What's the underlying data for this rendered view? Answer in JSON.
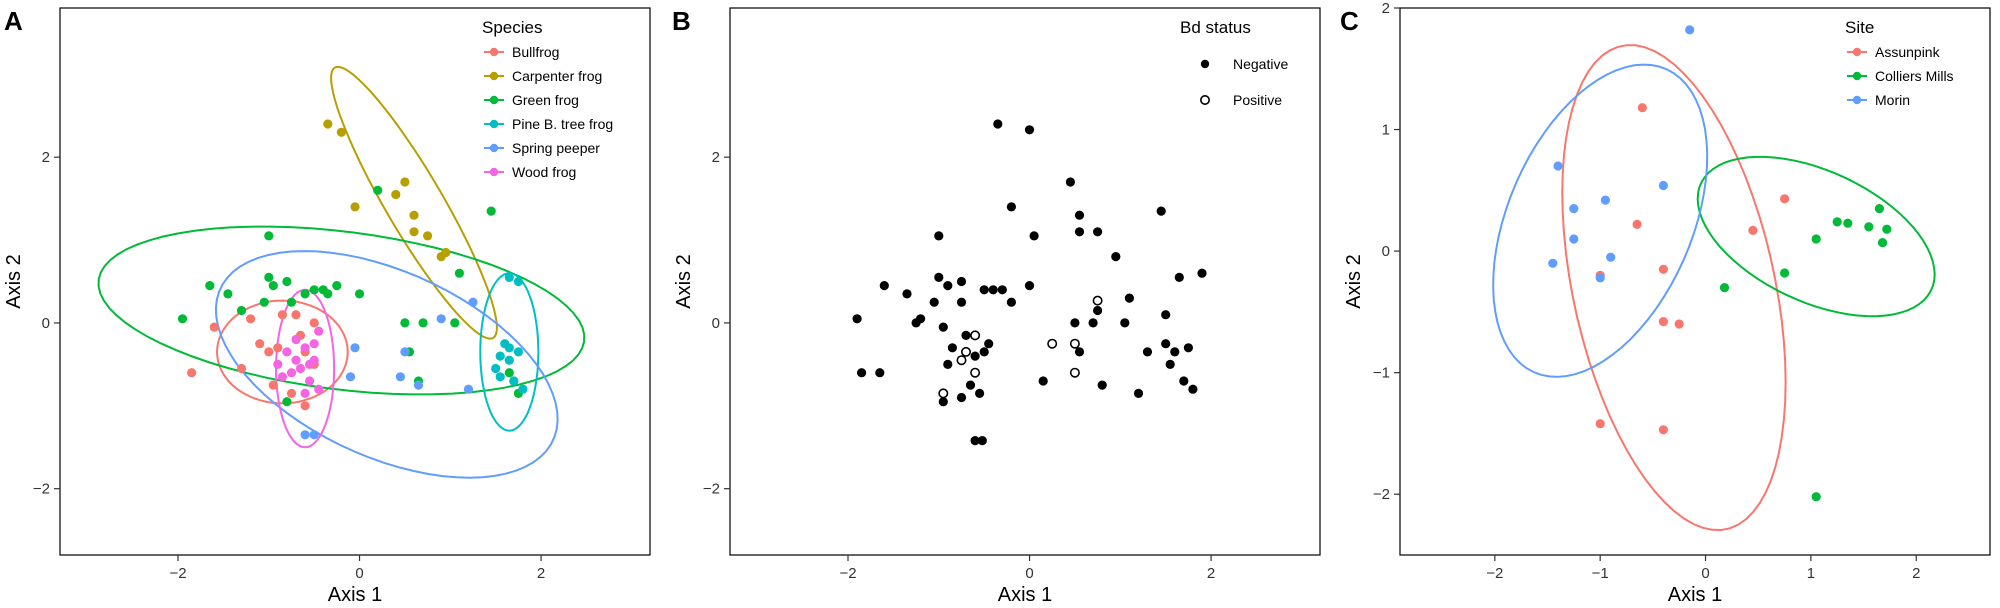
{
  "chart_data": [
    {
      "type": "scatter",
      "panel_label": "A",
      "xlabel": "Axis 1",
      "ylabel": "Axis 2",
      "xlim": [
        -3.3,
        3.2
      ],
      "ylim": [
        -2.8,
        3.8
      ],
      "xticks": [
        -2,
        0,
        2
      ],
      "yticks": [
        -2,
        0,
        2
      ],
      "grid": false,
      "legend": {
        "title": "Species",
        "placement": "top-right"
      },
      "series": [
        {
          "name": "Bullfrog",
          "color": "#F8766D",
          "points": [
            [
              -1.85,
              -0.6
            ],
            [
              -1.6,
              -0.05
            ],
            [
              -1.2,
              0.05
            ],
            [
              -1.1,
              -0.25
            ],
            [
              -1.0,
              -0.35
            ],
            [
              -0.9,
              -0.3
            ],
            [
              -0.85,
              0.1
            ],
            [
              -0.7,
              0.1
            ],
            [
              -0.65,
              -0.15
            ],
            [
              -0.6,
              -0.35
            ],
            [
              -0.5,
              0.0
            ],
            [
              -0.5,
              -0.5
            ],
            [
              -0.95,
              -0.75
            ],
            [
              -0.75,
              -0.85
            ],
            [
              -0.6,
              -1.0
            ],
            [
              -1.3,
              -0.55
            ]
          ],
          "ellipse": {
            "cx": -0.85,
            "cy": -0.35,
            "rx": 0.72,
            "ry": 0.62,
            "angle_deg": 0
          }
        },
        {
          "name": "Carpenter frog",
          "color": "#B79F00",
          "points": [
            [
              -0.35,
              2.4
            ],
            [
              -0.2,
              2.3
            ],
            [
              0.5,
              1.7
            ],
            [
              0.4,
              1.55
            ],
            [
              -0.05,
              1.4
            ],
            [
              0.6,
              1.3
            ],
            [
              0.6,
              1.1
            ],
            [
              0.75,
              1.05
            ],
            [
              0.9,
              0.8
            ],
            [
              0.95,
              0.85
            ]
          ],
          "ellipse": {
            "cx": 0.6,
            "cy": 1.45,
            "rx": 1.85,
            "ry": 0.32,
            "angle_deg": -62
          }
        },
        {
          "name": "Green frog",
          "color": "#00BA38",
          "points": [
            [
              -1.0,
              1.05
            ],
            [
              0.2,
              1.6
            ],
            [
              1.45,
              1.35
            ],
            [
              -1.65,
              0.45
            ],
            [
              -1.45,
              0.35
            ],
            [
              -1.3,
              0.15
            ],
            [
              -1.0,
              0.55
            ],
            [
              -0.95,
              0.45
            ],
            [
              -0.8,
              0.5
            ],
            [
              -0.6,
              0.35
            ],
            [
              -0.5,
              0.4
            ],
            [
              -0.4,
              0.4
            ],
            [
              -0.35,
              0.35
            ],
            [
              -0.25,
              0.45
            ],
            [
              -0.75,
              0.25
            ],
            [
              -1.05,
              0.25
            ],
            [
              -1.95,
              0.05
            ],
            [
              0.0,
              0.35
            ],
            [
              0.5,
              0.0
            ],
            [
              0.7,
              0.0
            ],
            [
              1.05,
              0.0
            ],
            [
              0.55,
              -0.35
            ],
            [
              1.65,
              -0.6
            ],
            [
              1.7,
              -0.7
            ],
            [
              0.65,
              -0.7
            ],
            [
              -0.8,
              -0.95
            ],
            [
              1.75,
              -0.85
            ],
            [
              1.1,
              0.6
            ]
          ],
          "ellipse": {
            "cx": -0.2,
            "cy": 0.15,
            "rx": 2.7,
            "ry": 0.95,
            "angle_deg": -8
          }
        },
        {
          "name": "Pine B. tree frog",
          "color": "#00BFC4",
          "points": [
            [
              1.6,
              -0.25
            ],
            [
              1.65,
              -0.3
            ],
            [
              1.75,
              -0.35
            ],
            [
              1.65,
              -0.45
            ],
            [
              1.5,
              -0.55
            ],
            [
              1.55,
              -0.65
            ],
            [
              1.7,
              -0.7
            ],
            [
              1.8,
              -0.8
            ],
            [
              1.65,
              0.55
            ],
            [
              1.75,
              0.5
            ],
            [
              1.55,
              -0.4
            ]
          ],
          "ellipse": {
            "cx": 1.65,
            "cy": -0.35,
            "rx": 0.32,
            "ry": 0.95,
            "angle_deg": 0
          }
        },
        {
          "name": "Spring peeper",
          "color": "#619CFF",
          "points": [
            [
              -0.05,
              -0.3
            ],
            [
              0.5,
              -0.35
            ],
            [
              -0.1,
              -0.65
            ],
            [
              0.45,
              -0.65
            ],
            [
              0.65,
              -0.75
            ],
            [
              1.2,
              -0.8
            ],
            [
              0.9,
              0.05
            ],
            [
              1.25,
              0.25
            ],
            [
              -0.6,
              -1.35
            ],
            [
              -0.5,
              -1.35
            ]
          ],
          "ellipse": {
            "cx": 0.3,
            "cy": -0.5,
            "rx": 2.05,
            "ry": 1.1,
            "angle_deg": -28
          }
        },
        {
          "name": "Wood frog",
          "color": "#F564E3",
          "points": [
            [
              -0.8,
              -0.35
            ],
            [
              -0.7,
              -0.2
            ],
            [
              -0.6,
              -0.3
            ],
            [
              -0.5,
              -0.25
            ],
            [
              -0.45,
              -0.1
            ],
            [
              -0.55,
              -0.5
            ],
            [
              -0.65,
              -0.55
            ],
            [
              -0.75,
              -0.6
            ],
            [
              -0.55,
              -0.7
            ],
            [
              -0.45,
              -0.8
            ],
            [
              -0.6,
              -0.85
            ],
            [
              -0.7,
              -0.45
            ],
            [
              -0.9,
              -0.5
            ],
            [
              -0.85,
              -0.65
            ],
            [
              -0.5,
              -0.45
            ]
          ],
          "ellipse": {
            "cx": -0.6,
            "cy": -0.55,
            "rx": 0.32,
            "ry": 0.95,
            "angle_deg": 0
          }
        }
      ]
    },
    {
      "type": "scatter",
      "panel_label": "B",
      "xlabel": "Axis 1",
      "ylabel": "Axis 2",
      "xlim": [
        -3.3,
        3.2
      ],
      "ylim": [
        -2.8,
        3.8
      ],
      "xticks": [
        -2,
        0,
        2
      ],
      "yticks": [
        -2,
        0,
        2
      ],
      "grid": false,
      "legend": {
        "title": "Bd status",
        "placement": "top-right"
      },
      "series": [
        {
          "name": "Negative",
          "style": "filled",
          "color": "#000000",
          "points": [
            [
              -0.35,
              2.4
            ],
            [
              -0.0,
              2.33
            ],
            [
              -0.2,
              1.4
            ],
            [
              0.45,
              1.7
            ],
            [
              0.55,
              1.3
            ],
            [
              0.05,
              1.05
            ],
            [
              0.55,
              1.1
            ],
            [
              0.75,
              1.1
            ],
            [
              0.95,
              0.8
            ],
            [
              1.45,
              1.35
            ],
            [
              -1.0,
              1.05
            ],
            [
              -1.6,
              0.45
            ],
            [
              -1.35,
              0.35
            ],
            [
              -1.0,
              0.55
            ],
            [
              -0.9,
              0.45
            ],
            [
              -0.75,
              0.5
            ],
            [
              -0.5,
              0.4
            ],
            [
              -0.4,
              0.4
            ],
            [
              -0.3,
              0.4
            ],
            [
              -0.0,
              0.45
            ],
            [
              -1.2,
              0.05
            ],
            [
              -1.05,
              0.25
            ],
            [
              -0.75,
              0.25
            ],
            [
              -1.9,
              0.05
            ],
            [
              -0.95,
              -0.05
            ],
            [
              -0.85,
              -0.3
            ],
            [
              -0.7,
              -0.15
            ],
            [
              -0.6,
              -0.4
            ],
            [
              -0.5,
              -0.35
            ],
            [
              -0.45,
              -0.25
            ],
            [
              -0.9,
              -0.5
            ],
            [
              -0.65,
              -0.75
            ],
            [
              -0.55,
              -0.85
            ],
            [
              -0.75,
              -0.9
            ],
            [
              -0.95,
              -0.95
            ],
            [
              -0.6,
              -1.42
            ],
            [
              -0.52,
              -1.42
            ],
            [
              -1.85,
              -0.6
            ],
            [
              -1.65,
              -0.6
            ],
            [
              0.5,
              0.0
            ],
            [
              0.7,
              0.0
            ],
            [
              1.05,
              0.0
            ],
            [
              0.55,
              -0.35
            ],
            [
              0.15,
              -0.7
            ],
            [
              0.8,
              -0.75
            ],
            [
              1.2,
              -0.85
            ],
            [
              1.3,
              -0.35
            ],
            [
              1.5,
              -0.25
            ],
            [
              1.6,
              -0.35
            ],
            [
              1.75,
              -0.3
            ],
            [
              1.55,
              -0.5
            ],
            [
              1.7,
              -0.7
            ],
            [
              1.8,
              -0.8
            ],
            [
              1.65,
              0.55
            ],
            [
              1.5,
              0.1
            ],
            [
              0.75,
              0.15
            ],
            [
              1.1,
              0.3
            ],
            [
              1.9,
              0.6
            ],
            [
              -1.25,
              0.0
            ],
            [
              -0.2,
              0.25
            ]
          ],
          "size_note": ""
        },
        {
          "name": "Positive",
          "style": "open",
          "color": "#000000",
          "points": [
            [
              -0.6,
              -0.15
            ],
            [
              -0.7,
              -0.35
            ],
            [
              -0.75,
              -0.45
            ],
            [
              -0.95,
              -0.85
            ],
            [
              -0.6,
              -0.6
            ],
            [
              0.25,
              -0.25
            ],
            [
              0.5,
              -0.25
            ],
            [
              0.5,
              -0.6
            ],
            [
              0.75,
              0.27
            ]
          ]
        }
      ]
    },
    {
      "type": "scatter",
      "panel_label": "C",
      "xlabel": "Axis 1",
      "ylabel": "Axis 2",
      "xlim": [
        -2.9,
        2.7
      ],
      "ylim": [
        -2.5,
        2.0
      ],
      "xticks": [
        -2,
        -1,
        0,
        1,
        2
      ],
      "yticks": [
        -2,
        -1,
        0,
        1,
        2
      ],
      "grid": false,
      "legend": {
        "title": "Site",
        "placement": "top-right"
      },
      "series": [
        {
          "name": "Assunpink",
          "color": "#F8766D",
          "points": [
            [
              -0.6,
              1.18
            ],
            [
              -0.65,
              0.22
            ],
            [
              -0.4,
              -0.15
            ],
            [
              -1.0,
              -0.2
            ],
            [
              -0.4,
              -0.58
            ],
            [
              -0.25,
              -0.6
            ],
            [
              0.45,
              0.17
            ],
            [
              0.75,
              0.43
            ],
            [
              -1.0,
              -1.42
            ],
            [
              -0.4,
              -1.47
            ]
          ],
          "ellipse": {
            "cx": -0.3,
            "cy": -0.3,
            "rx": 2.05,
            "ry": 0.95,
            "angle_deg": -75
          }
        },
        {
          "name": "Colliers Mills",
          "color": "#00BA38",
          "points": [
            [
              0.18,
              -0.3
            ],
            [
              0.75,
              -0.18
            ],
            [
              1.05,
              0.1
            ],
            [
              1.25,
              0.24
            ],
            [
              1.35,
              0.23
            ],
            [
              1.55,
              0.2
            ],
            [
              1.65,
              0.35
            ],
            [
              1.72,
              0.18
            ],
            [
              1.68,
              0.07
            ],
            [
              1.05,
              -2.02
            ]
          ],
          "ellipse": {
            "cx": 1.05,
            "cy": 0.12,
            "rx": 1.18,
            "ry": 0.55,
            "angle_deg": -20
          }
        },
        {
          "name": "Morin",
          "color": "#619CFF",
          "points": [
            [
              -0.15,
              1.82
            ],
            [
              -1.4,
              0.7
            ],
            [
              -1.25,
              0.35
            ],
            [
              -0.95,
              0.42
            ],
            [
              -0.4,
              0.54
            ],
            [
              -1.25,
              0.1
            ],
            [
              -0.9,
              -0.05
            ],
            [
              -1.45,
              -0.1
            ],
            [
              -1.0,
              -0.22
            ]
          ],
          "ellipse": {
            "cx": -1.0,
            "cy": 0.25,
            "rx": 1.4,
            "ry": 0.85,
            "angle_deg": 60
          }
        }
      ]
    }
  ]
}
